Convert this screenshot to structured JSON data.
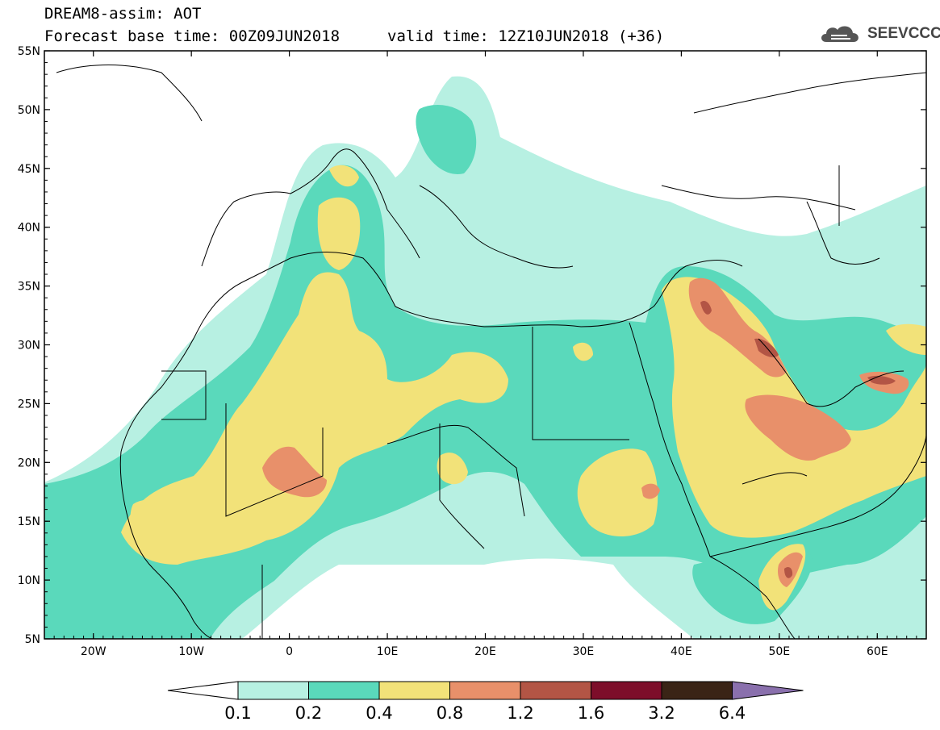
{
  "title": {
    "line1": "DREAM8-assim: AOT",
    "line2": "Forecast base time: 00Z09JUN2018",
    "valid": "valid time: 12Z10JUN2018 (+36)"
  },
  "logo": {
    "text": "SEEVCCC",
    "icon": "cloud-logo-icon"
  },
  "map": {
    "projection": "lat-lon",
    "lon_range": [
      -25,
      65
    ],
    "lat_range": [
      5,
      55
    ],
    "lat_labels": [
      "55N",
      "50N",
      "45N",
      "40N",
      "35N",
      "30N",
      "25N",
      "20N",
      "15N",
      "10N",
      "5N"
    ],
    "lat_values": [
      55,
      50,
      45,
      40,
      35,
      30,
      25,
      20,
      15,
      10,
      5
    ],
    "lon_labels": [
      "20W",
      "10W",
      "0",
      "10E",
      "20E",
      "30E",
      "40E",
      "50E",
      "60E"
    ],
    "lon_values": [
      -20,
      -10,
      0,
      10,
      20,
      30,
      40,
      50,
      60
    ]
  },
  "colorbar": {
    "labels": [
      "0.1",
      "0.2",
      "0.4",
      "0.8",
      "1.2",
      "1.6",
      "3.2",
      "6.4"
    ],
    "colors": [
      "#b7f0e2",
      "#5ad9bb",
      "#f2e279",
      "#e8906a",
      "#b35545",
      "#7d0e2a",
      "#3a2416",
      "#8a70ad"
    ],
    "under_color": "#ffffff"
  },
  "field_colors": {
    "light": "#b7f0e2",
    "green": "#5ad9bb",
    "yellow": "#f2e279",
    "orange": "#e8906a",
    "red": "#b35545"
  }
}
